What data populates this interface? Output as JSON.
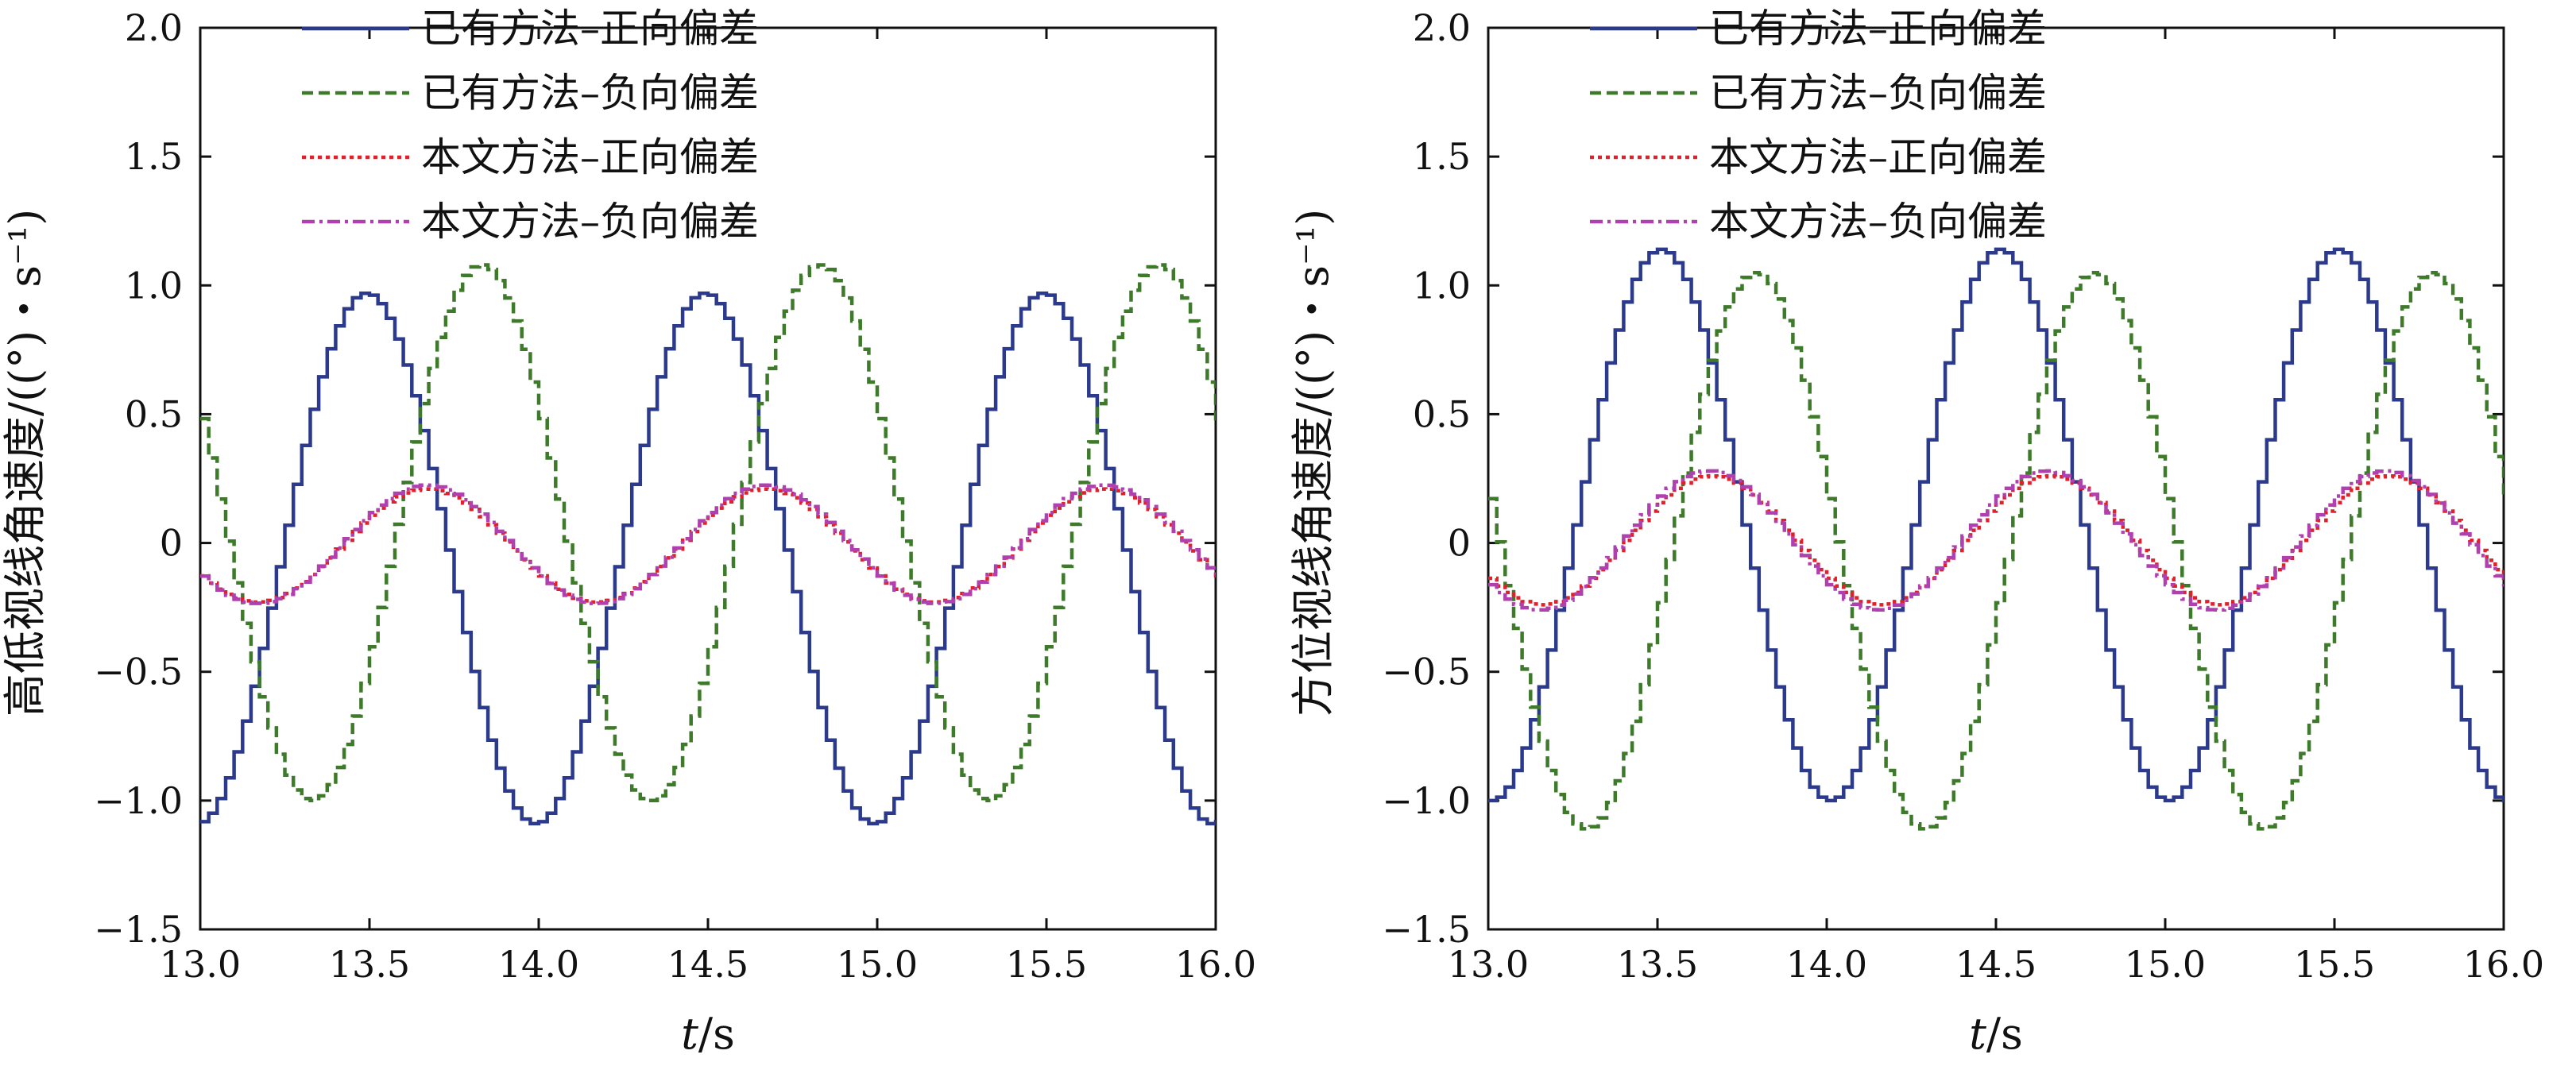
{
  "chart_data": [
    {
      "type": "line",
      "ylabel": "高低视线角速度/((°)・s⁻¹)",
      "xlabel_italic": "t",
      "xlabel_unit": "/s",
      "xlim": [
        13.0,
        16.0
      ],
      "ylim": [
        -1.5,
        2.0
      ],
      "xticks": [
        "13.0",
        "13.5",
        "14.0",
        "14.5",
        "15.0",
        "15.5",
        "16.0"
      ],
      "yticks": [
        "2.0",
        "1.5",
        "1.0",
        "0.5",
        "0",
        "−0.5",
        "−1.0",
        "−1.5"
      ],
      "legend_position": "top-left",
      "grid": false,
      "series": [
        {
          "name": "已有方法–正向偏差",
          "color": "#2b3a8c",
          "dash": "solid",
          "step": true,
          "amplitude": 1.03,
          "offset": -0.06,
          "period": 1.0,
          "peak_t": 13.48
        },
        {
          "name": "已有方法–负向偏差",
          "color": "#3d7a2a",
          "dash": "dashed",
          "step": true,
          "amplitude": 1.04,
          "offset": 0.04,
          "period": 1.0,
          "peak_t": 13.82
        },
        {
          "name": "本文方法–正向偏差",
          "color": "#e0202a",
          "dash": "dotted",
          "step": true,
          "amplitude": 0.22,
          "offset": -0.01,
          "period": 1.0,
          "peak_t": 13.66
        },
        {
          "name": "本文方法–负向偏差",
          "color": "#b040b0",
          "dash": "dashdot",
          "step": true,
          "amplitude": 0.23,
          "offset": -0.005,
          "period": 1.0,
          "peak_t": 13.66
        }
      ]
    },
    {
      "type": "line",
      "ylabel": "方位视线角速度/((°)・s⁻¹)",
      "xlabel_italic": "t",
      "xlabel_unit": "/s",
      "xlim": [
        13.0,
        16.0
      ],
      "ylim": [
        -1.5,
        2.0
      ],
      "xticks": [
        "13.0",
        "13.5",
        "14.0",
        "14.5",
        "15.0",
        "15.5",
        "16.0"
      ],
      "yticks": [
        "2.0",
        "1.5",
        "1.0",
        "0.5",
        "0",
        "−0.5",
        "−1.0",
        "−1.5"
      ],
      "legend_position": "top-left",
      "grid": false,
      "series": [
        {
          "name": "已有方法–正向偏差",
          "color": "#2b3a8c",
          "dash": "solid",
          "step": true,
          "amplitude": 1.07,
          "offset": 0.07,
          "period": 1.0,
          "peak_t": 13.5
        },
        {
          "name": "已有方法–负向偏差",
          "color": "#3d7a2a",
          "dash": "dashed",
          "step": true,
          "amplitude": 1.08,
          "offset": -0.03,
          "period": 1.0,
          "peak_t": 13.78
        },
        {
          "name": "本文方法–正向偏差",
          "color": "#e0202a",
          "dash": "dotted",
          "step": true,
          "amplitude": 0.25,
          "offset": 0.01,
          "period": 1.0,
          "peak_t": 13.65
        },
        {
          "name": "本文方法–负向偏差",
          "color": "#b040b0",
          "dash": "dashdot",
          "step": true,
          "amplitude": 0.27,
          "offset": 0.01,
          "period": 1.0,
          "peak_t": 13.64
        }
      ]
    }
  ]
}
